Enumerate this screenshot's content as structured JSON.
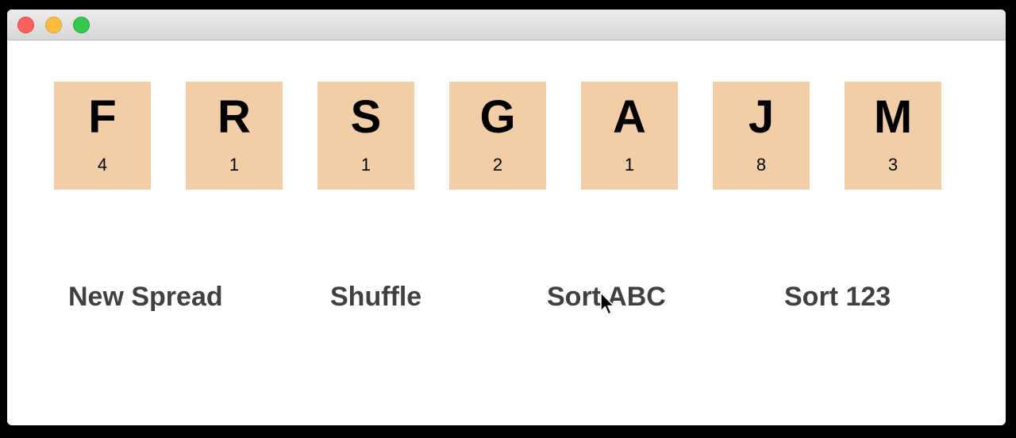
{
  "window": {
    "traffic_lights": [
      "close",
      "minimize",
      "zoom"
    ]
  },
  "tiles": [
    {
      "letter": "F",
      "score": "4"
    },
    {
      "letter": "R",
      "score": "1"
    },
    {
      "letter": "S",
      "score": "1"
    },
    {
      "letter": "G",
      "score": "2"
    },
    {
      "letter": "A",
      "score": "1"
    },
    {
      "letter": "J",
      "score": "8"
    },
    {
      "letter": "M",
      "score": "3"
    }
  ],
  "controls": {
    "new_spread": "New Spread",
    "shuffle": "Shuffle",
    "sort_abc": "Sort ABC",
    "sort_123": "Sort 123"
  },
  "colors": {
    "tile_background": "#f2cea8",
    "control_text": "#404040"
  },
  "icons": {
    "cursor": "mouse-pointer-icon"
  }
}
